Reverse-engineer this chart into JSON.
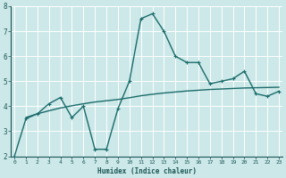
{
  "xlabel": "Humidex (Indice chaleur)",
  "background_color": "#cce8e8",
  "grid_color": "#ffffff",
  "line_color": "#1a6b6b",
  "x_jagged": [
    0,
    1,
    2,
    3,
    4,
    5,
    6,
    7,
    8,
    9,
    10,
    11,
    12,
    13,
    14,
    15,
    16,
    17,
    18,
    19,
    20,
    21,
    22,
    23
  ],
  "y_jagged": [
    2.0,
    3.5,
    3.7,
    4.1,
    4.35,
    3.55,
    4.0,
    2.28,
    2.28,
    3.9,
    5.0,
    7.5,
    7.7,
    7.0,
    6.0,
    5.75,
    5.75,
    4.9,
    5.0,
    5.1,
    5.4,
    4.5,
    4.4,
    4.6
  ],
  "x_trend": [
    1,
    2,
    3,
    4,
    5,
    6,
    7,
    8,
    9,
    10,
    11,
    12,
    13,
    14,
    15,
    16,
    17,
    18,
    19,
    20,
    21,
    22,
    23
  ],
  "y_trend": [
    3.55,
    3.7,
    3.82,
    3.93,
    4.02,
    4.1,
    4.17,
    4.22,
    4.27,
    4.34,
    4.42,
    4.48,
    4.53,
    4.57,
    4.61,
    4.64,
    4.67,
    4.69,
    4.71,
    4.73,
    4.74,
    4.75,
    4.76
  ],
  "ylim": [
    2,
    8
  ],
  "xlim": [
    -0.3,
    23.3
  ],
  "yticks": [
    2,
    3,
    4,
    5,
    6,
    7,
    8
  ],
  "xticks": [
    0,
    1,
    2,
    3,
    4,
    5,
    6,
    7,
    8,
    9,
    10,
    11,
    12,
    13,
    14,
    15,
    16,
    17,
    18,
    19,
    20,
    21,
    22,
    23
  ],
  "markersize": 2.5,
  "linewidth": 1.0
}
